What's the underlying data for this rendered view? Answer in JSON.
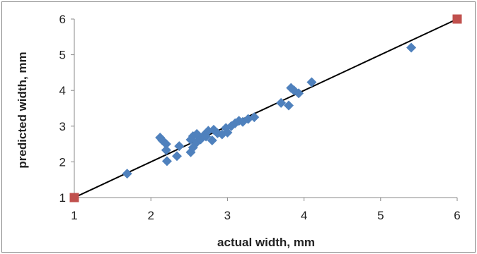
{
  "chart_data": {
    "type": "scatter",
    "title": "",
    "xlabel": "actual width, mm",
    "ylabel": "predicted width, mm",
    "xlim": [
      1,
      6
    ],
    "ylim": [
      1,
      6
    ],
    "x_ticks": [
      "1",
      "2",
      "3",
      "4",
      "5",
      "6"
    ],
    "y_ticks": [
      "1",
      "2",
      "3",
      "4",
      "5",
      "6"
    ],
    "grid": false,
    "legend": "none",
    "colors": {
      "data": "#4f81bd",
      "reference": "#c0504d",
      "line": "#000000",
      "axis": "#888888"
    },
    "series": [
      {
        "marker": "diamond",
        "points": [
          [
            1.69,
            1.67
          ],
          [
            2.12,
            2.68
          ],
          [
            2.15,
            2.6
          ],
          [
            2.2,
            2.5
          ],
          [
            2.2,
            2.33
          ],
          [
            2.21,
            2.02
          ],
          [
            2.34,
            2.16
          ],
          [
            2.37,
            2.44
          ],
          [
            2.52,
            2.27
          ],
          [
            2.55,
            2.4
          ],
          [
            2.52,
            2.62
          ],
          [
            2.55,
            2.72
          ],
          [
            2.6,
            2.78
          ],
          [
            2.6,
            2.55
          ],
          [
            2.65,
            2.63
          ],
          [
            2.69,
            2.74
          ],
          [
            2.72,
            2.71
          ],
          [
            2.75,
            2.87
          ],
          [
            2.8,
            2.6
          ],
          [
            2.82,
            2.9
          ],
          [
            2.87,
            2.8
          ],
          [
            2.93,
            2.77
          ],
          [
            2.98,
            2.95
          ],
          [
            3.0,
            2.82
          ],
          [
            3.05,
            3.0
          ],
          [
            3.1,
            3.08
          ],
          [
            3.15,
            3.15
          ],
          [
            3.2,
            3.12
          ],
          [
            3.27,
            3.2
          ],
          [
            3.35,
            3.25
          ],
          [
            3.7,
            3.65
          ],
          [
            3.8,
            3.58
          ],
          [
            3.83,
            4.07
          ],
          [
            3.87,
            4.0
          ],
          [
            3.93,
            3.92
          ],
          [
            4.1,
            4.23
          ],
          [
            5.4,
            5.2
          ]
        ]
      },
      {
        "marker": "square",
        "points": [
          [
            1.0,
            1.0
          ],
          [
            6.0,
            6.0
          ]
        ]
      }
    ],
    "reference_line": {
      "from": [
        1,
        1
      ],
      "to": [
        6,
        6
      ]
    }
  }
}
